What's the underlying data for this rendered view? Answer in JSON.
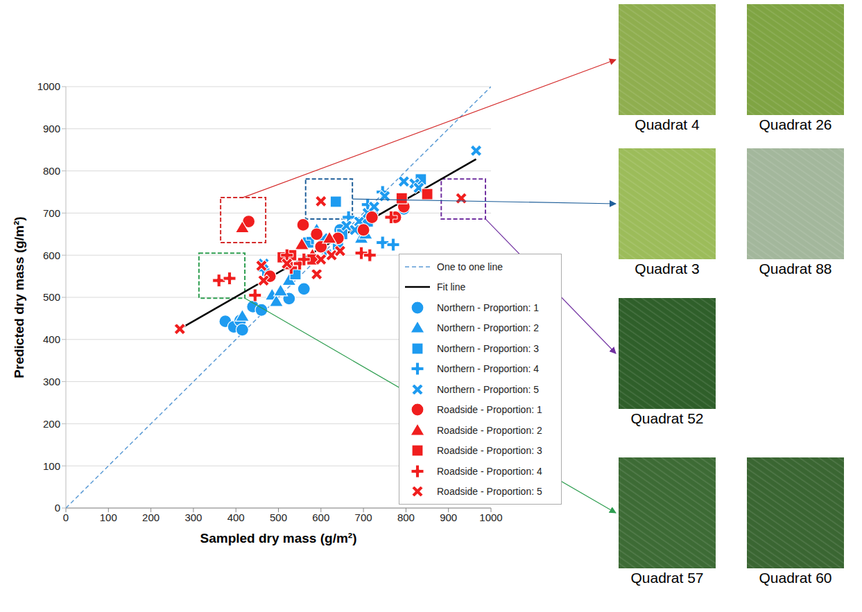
{
  "chart_data": {
    "type": "scatter",
    "x_label": "Sampled dry mass (g/m²)",
    "y_label": "Predicted dry mass (g/m²)",
    "xlim": [
      0,
      1000
    ],
    "ylim": [
      0,
      1000
    ],
    "xticks": [
      0,
      100,
      200,
      300,
      400,
      500,
      600,
      700,
      800,
      900,
      1000
    ],
    "yticks": [
      0,
      100,
      200,
      300,
      400,
      500,
      600,
      700,
      800,
      900,
      1000
    ],
    "grid": true,
    "legend": "lower right",
    "series": [
      {
        "name": "One to one line",
        "type": "line",
        "line_style": "dashed",
        "color": "#5B9BD5",
        "x": [
          0,
          1000
        ],
        "y": [
          0,
          1000
        ]
      },
      {
        "name": "Fit line",
        "type": "line",
        "line_style": "solid",
        "color": "#000000",
        "x": [
          268,
          965
        ],
        "y": [
          425,
          828
        ]
      },
      {
        "name": "Northern - Proportion: 1",
        "type": "scatter",
        "marker": "circle",
        "color": "#1E9BF0",
        "x": [
          375,
          395,
          410,
          415,
          440,
          460,
          525,
          560,
          645,
          700,
          795
        ],
        "y": [
          443,
          430,
          445,
          423,
          478,
          470,
          497,
          520,
          660,
          650,
          710
        ]
      },
      {
        "name": "Northern - Proportion: 2",
        "type": "scatter",
        "marker": "triangle",
        "color": "#1E9BF0",
        "x": [
          415,
          485,
          495,
          505,
          525,
          590,
          695,
          705
        ],
        "y": [
          455,
          505,
          490,
          515,
          540,
          660,
          640,
          650
        ]
      },
      {
        "name": "Northern - Proportion: 3",
        "type": "scatter",
        "marker": "square",
        "color": "#1E9BF0",
        "x": [
          540,
          570,
          640,
          635,
          650,
          835,
          710
        ],
        "y": [
          555,
          630,
          625,
          727,
          650,
          780,
          680
        ]
      },
      {
        "name": "Northern - Proportion: 4",
        "type": "scatter",
        "marker": "plus",
        "color": "#1E9BF0",
        "x": [
          465,
          580,
          665,
          710,
          745,
          745,
          770,
          720,
          610
        ],
        "y": [
          565,
          640,
          690,
          720,
          750,
          630,
          625,
          700,
          610
        ]
      },
      {
        "name": "Northern - Proportion: 5",
        "type": "scatter",
        "marker": "x",
        "color": "#1E9BF0",
        "x": [
          465,
          605,
          660,
          690,
          710,
          725,
          750,
          795,
          820,
          830,
          965,
          680
        ],
        "y": [
          580,
          640,
          670,
          680,
          700,
          715,
          740,
          775,
          770,
          760,
          848,
          660
        ]
      },
      {
        "name": "Roadside - Proportion: 1",
        "type": "scatter",
        "marker": "circle",
        "color": "#F01E1E",
        "x": [
          430,
          558,
          590,
          600,
          720,
          775,
          795,
          480,
          700,
          640
        ],
        "y": [
          680,
          672,
          650,
          620,
          690,
          690,
          715,
          550,
          660,
          640
        ]
      },
      {
        "name": "Roadside - Proportion: 2",
        "type": "scatter",
        "marker": "triangle",
        "color": "#F01E1E",
        "x": [
          415,
          555,
          580,
          620
        ],
        "y": [
          665,
          625,
          600,
          640
        ]
      },
      {
        "name": "Roadside - Proportion: 3",
        "type": "scatter",
        "marker": "square",
        "color": "#F01E1E",
        "x": [
          510,
          530,
          580,
          790,
          850
        ],
        "y": [
          595,
          600,
          590,
          735,
          745
        ]
      },
      {
        "name": "Roadside - Proportion: 4",
        "type": "scatter",
        "marker": "plus",
        "color": "#F01E1E",
        "x": [
          360,
          385,
          445,
          520,
          550,
          560,
          695,
          715,
          765,
          530
        ],
        "y": [
          540,
          545,
          505,
          600,
          580,
          590,
          605,
          600,
          690,
          570
        ]
      },
      {
        "name": "Roadside - Proportion: 5",
        "type": "scatter",
        "marker": "x",
        "color": "#F01E1E",
        "x": [
          268,
          460,
          465,
          590,
          600,
          625,
          645,
          930,
          520,
          600
        ],
        "y": [
          425,
          575,
          540,
          555,
          728,
          600,
          610,
          735,
          580,
          590
        ]
      }
    ],
    "annotations": [
      {
        "color": "#D42A2A",
        "xlim": [
          364,
          470
        ],
        "ylim": [
          630,
          737
        ],
        "images": [
          "Quadrat 4",
          "Quadrat 26"
        ]
      },
      {
        "color": "#1F5F9A",
        "xlim": [
          564,
          674
        ],
        "ylim": [
          686,
          781
        ],
        "images": [
          "Quadrat 3",
          "Quadrat 88"
        ]
      },
      {
        "color": "#7030A0",
        "xlim": [
          883,
          987
        ],
        "ylim": [
          686,
          781
        ],
        "images": [
          "Quadrat 52"
        ]
      },
      {
        "color": "#2E9E50",
        "xlim": [
          313,
          421
        ],
        "ylim": [
          498,
          605
        ],
        "images": [
          "Quadrat 57",
          "Quadrat 60"
        ]
      }
    ]
  }
}
